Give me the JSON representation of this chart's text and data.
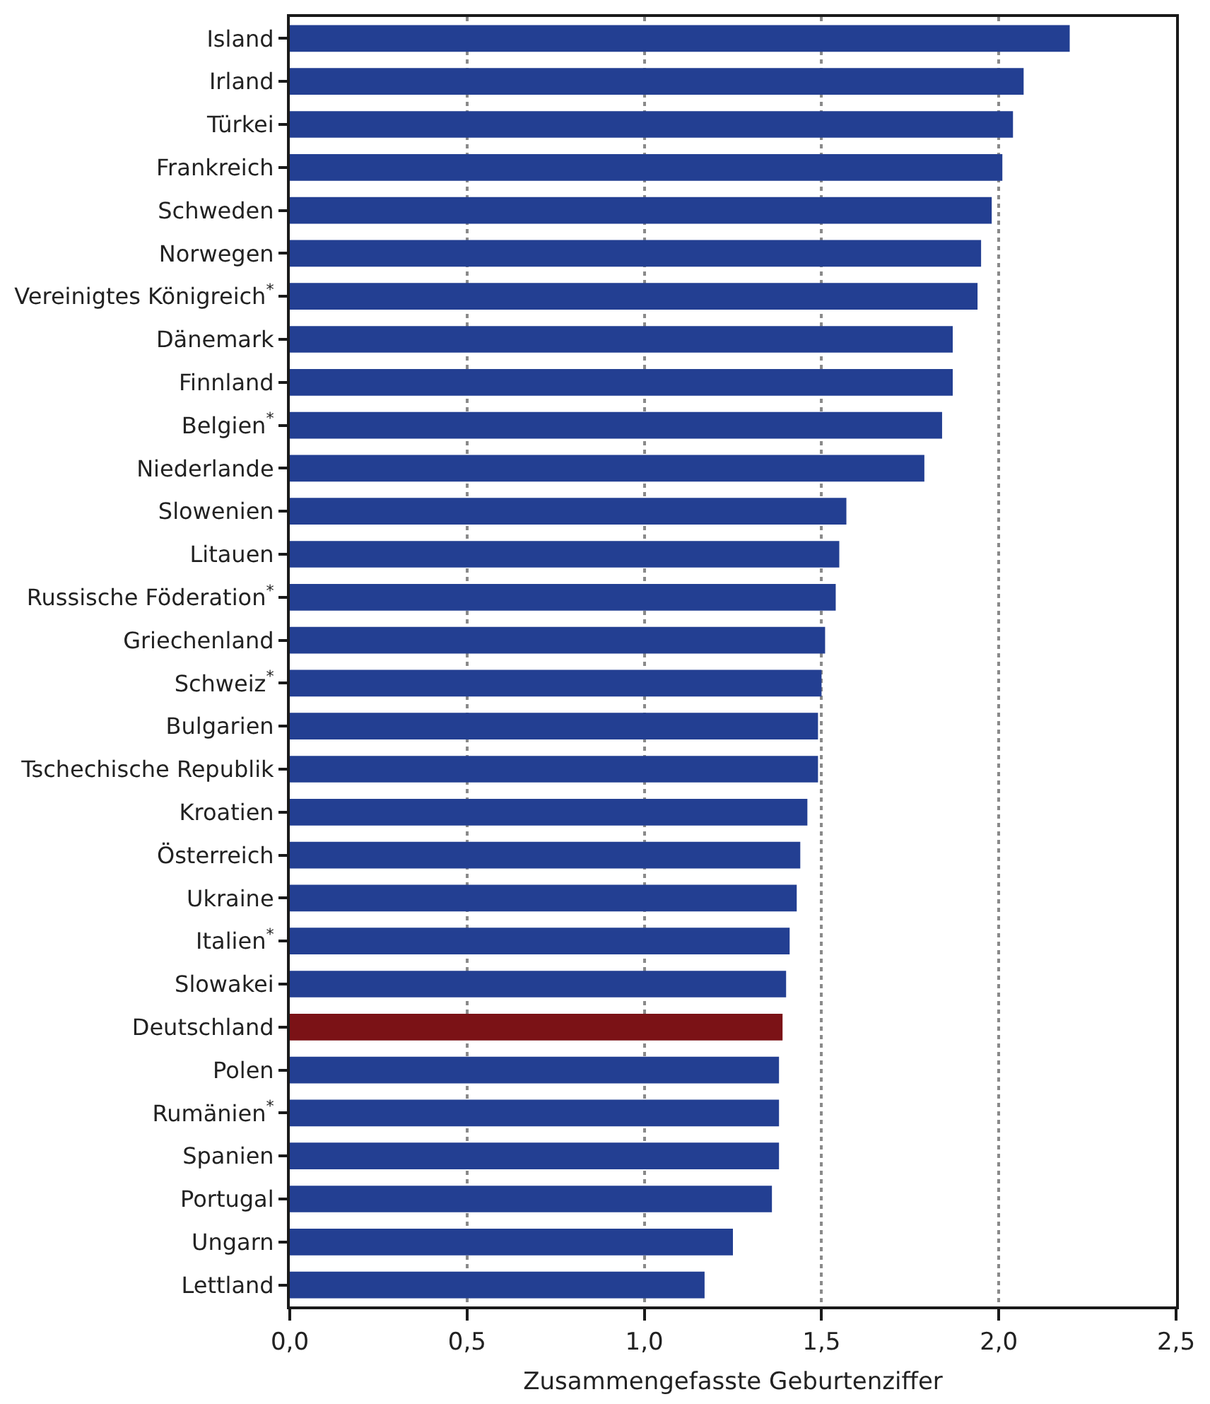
{
  "chart_data": {
    "type": "bar",
    "orientation": "horizontal",
    "xlabel": "Zusammengefasste Geburtenziffer",
    "categories": [
      "Island",
      "Irland",
      "Türkei",
      "Frankreich",
      "Schweden",
      "Norwegen",
      "Vereinigtes Königreich$^{*}$",
      "Dänemark",
      "Finnland",
      "Belgien$^{*}$",
      "Niederlande",
      "Slowenien",
      "Litauen",
      "Russische Föderation$^{*}$",
      "Griechenland",
      "Schweiz$^{*}$",
      "Bulgarien",
      "Tschechische Republik",
      "Kroatien",
      "Österreich",
      "Ukraine",
      "Italien$^{*}$",
      "Slowakei",
      "Deutschland",
      "Polen",
      "Rumänien$^{*}$",
      "Spanien",
      "Portugal",
      "Ungarn",
      "Lettland"
    ],
    "values": [
      2.2,
      2.07,
      2.04,
      2.01,
      1.98,
      1.95,
      1.94,
      1.87,
      1.87,
      1.84,
      1.79,
      1.57,
      1.55,
      1.54,
      1.51,
      1.5,
      1.49,
      1.49,
      1.46,
      1.44,
      1.43,
      1.41,
      1.4,
      1.39,
      1.38,
      1.38,
      1.38,
      1.36,
      1.25,
      1.17
    ],
    "colors": [
      "#233f92",
      "#233f92",
      "#233f92",
      "#233f92",
      "#233f92",
      "#233f92",
      "#233f92",
      "#233f92",
      "#233f92",
      "#233f92",
      "#233f92",
      "#233f92",
      "#233f92",
      "#233f92",
      "#233f92",
      "#233f92",
      "#233f92",
      "#233f92",
      "#233f92",
      "#233f92",
      "#233f92",
      "#233f92",
      "#233f92",
      "#7b1216",
      "#233f92",
      "#233f92",
      "#233f92",
      "#233f92",
      "#233f92",
      "#233f92"
    ],
    "xlim": [
      0,
      2.5
    ],
    "xticks": [
      {
        "value": 0,
        "label": "0,0"
      },
      {
        "value": 0.5,
        "label": "0,5"
      },
      {
        "value": 1,
        "label": "1,0"
      },
      {
        "value": 1.5,
        "label": "1,5"
      },
      {
        "value": 2,
        "label": "2,0"
      },
      {
        "value": 2.5,
        "label": "2,5"
      }
    ],
    "grid": "x"
  }
}
